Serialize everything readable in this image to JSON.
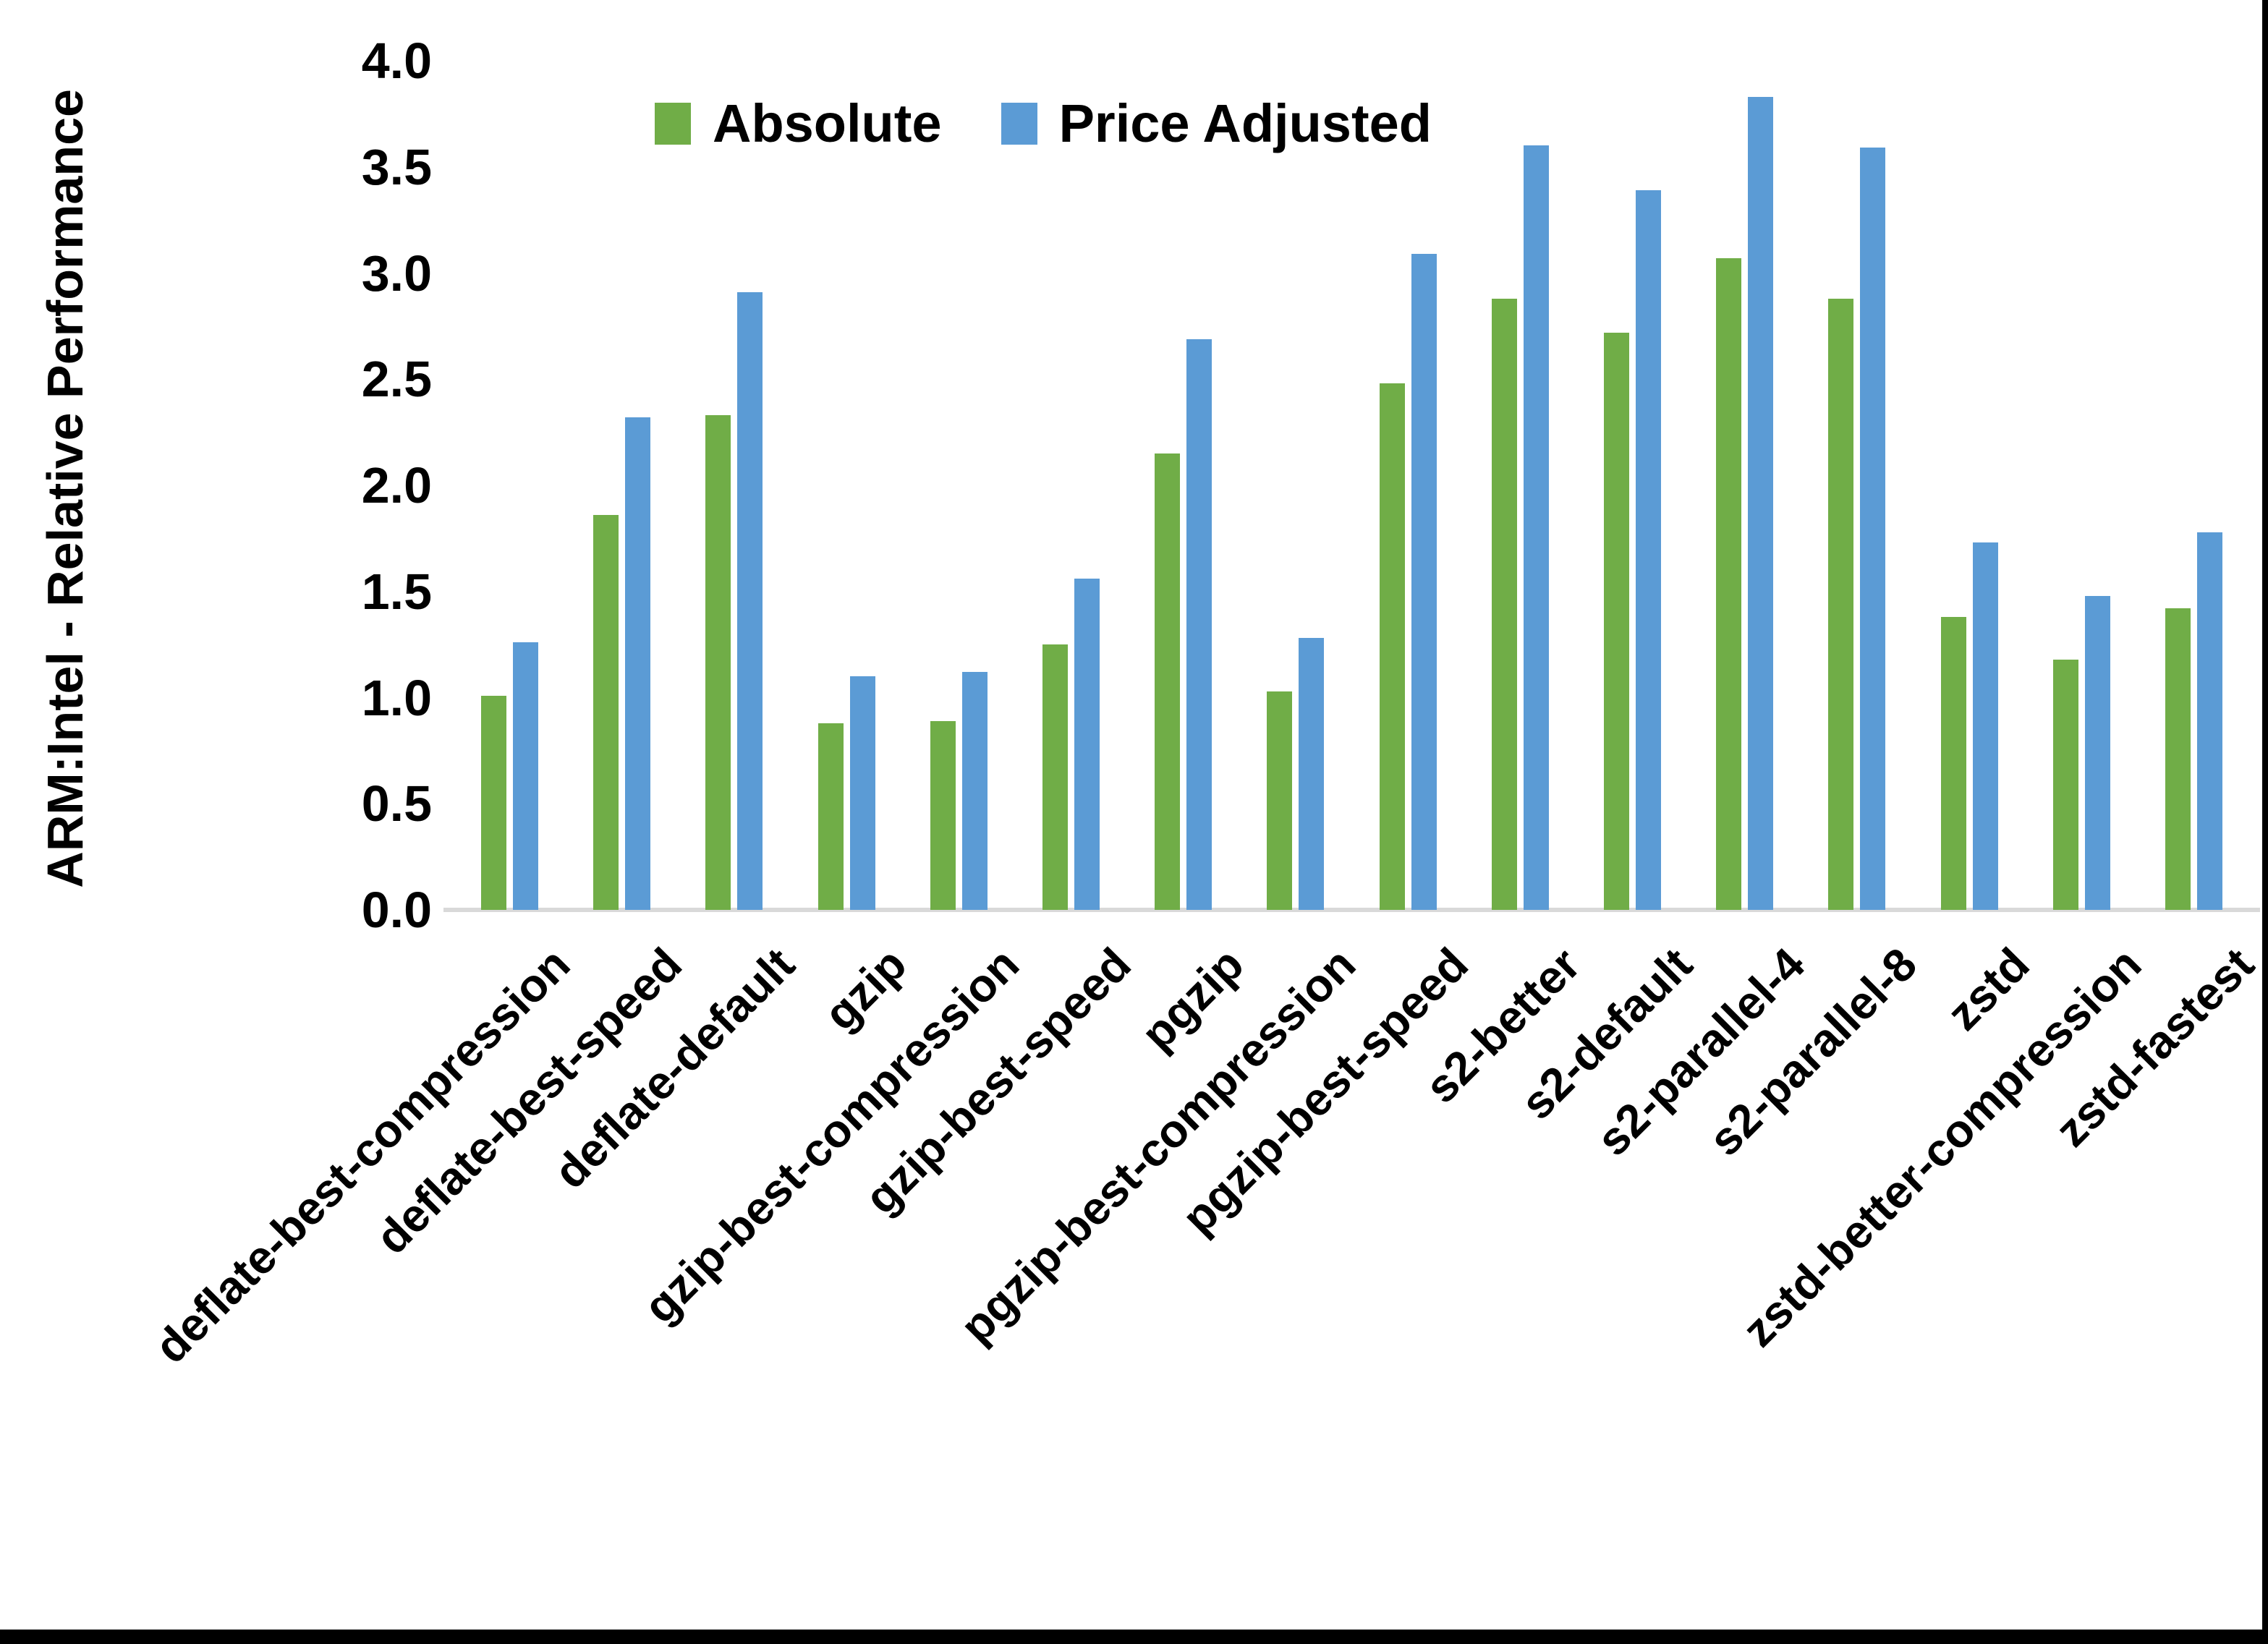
{
  "chart_data": {
    "type": "bar",
    "title": "",
    "xlabel": "",
    "ylabel": "ARM:Intel - Relative Performance",
    "ylim": [
      0.0,
      4.0
    ],
    "yticks": [
      "0.0",
      "0.5",
      "1.0",
      "1.5",
      "2.0",
      "2.5",
      "3.0",
      "3.5",
      "4.0"
    ],
    "grid": false,
    "legend_position": "top-center",
    "categories": [
      "deflate-best-compression",
      "deflate-best-speed",
      "deflate-default",
      "gzip",
      "gzip-best-compression",
      "gzip-best-speed",
      "pgzip",
      "pgzip-best-compression",
      "pgzip-best-speed",
      "s2-better",
      "s2-default",
      "s2-parallel-4",
      "s2-parallel-8",
      "zstd",
      "zstd-better-compression",
      "zstd-fastest"
    ],
    "series": [
      {
        "name": "Absolute",
        "color": "#70AD47",
        "values": [
          1.01,
          1.86,
          2.33,
          0.88,
          0.89,
          1.25,
          2.15,
          1.03,
          2.48,
          2.88,
          2.72,
          3.07,
          2.88,
          1.38,
          1.18,
          1.42
        ]
      },
      {
        "name": "Price Adjusted",
        "color": "#5B9BD5",
        "values": [
          1.26,
          2.32,
          2.91,
          1.1,
          1.12,
          1.56,
          2.69,
          1.28,
          3.09,
          3.6,
          3.39,
          3.83,
          3.59,
          1.73,
          1.48,
          1.78
        ]
      }
    ],
    "axis_line_color": "#D9D9D9",
    "border_color": "#000000"
  }
}
